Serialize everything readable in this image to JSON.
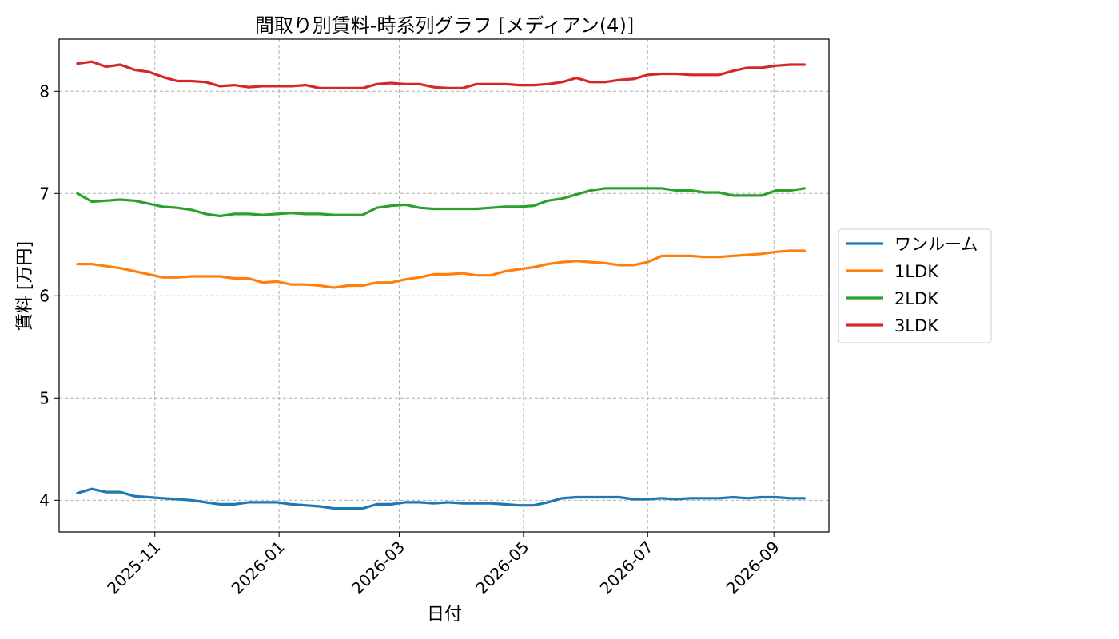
{
  "chart_data": {
    "type": "line",
    "title": "間取り別賃料-時系列グラフ [メディアン(4)]",
    "xlabel": "日付",
    "ylabel": "賃料 [万円]",
    "x_ticks": [
      "2025-11",
      "2026-01",
      "2026-03",
      "2026-05",
      "2026-07",
      "2026-09"
    ],
    "y_ticks": [
      "4",
      "5",
      "6",
      "7",
      "8"
    ],
    "xlim": [
      "2025-09-15",
      "2026-09-28"
    ],
    "ylim": [
      3.69,
      8.51
    ],
    "grid": true,
    "legend_position": "center-right (outside plot)",
    "x": [
      "2025-09-24",
      "2025-10-01",
      "2025-10-08",
      "2025-10-15",
      "2025-10-22",
      "2025-10-29",
      "2025-11-05",
      "2025-11-12",
      "2025-11-19",
      "2025-11-26",
      "2025-12-03",
      "2025-12-10",
      "2025-12-17",
      "2025-12-24",
      "2025-12-31",
      "2026-01-07",
      "2026-01-14",
      "2026-01-21",
      "2026-01-28",
      "2026-02-04",
      "2026-02-11",
      "2026-02-18",
      "2026-02-25",
      "2026-03-04",
      "2026-03-11",
      "2026-03-18",
      "2026-03-25",
      "2026-04-01",
      "2026-04-08",
      "2026-04-15",
      "2026-04-22",
      "2026-04-29",
      "2026-05-06",
      "2026-05-13",
      "2026-05-20",
      "2026-05-27",
      "2026-06-03",
      "2026-06-10",
      "2026-06-17",
      "2026-06-24",
      "2026-07-01",
      "2026-07-08",
      "2026-07-15",
      "2026-07-22",
      "2026-07-29",
      "2026-08-05",
      "2026-08-12",
      "2026-08-19",
      "2026-08-26",
      "2026-09-02",
      "2026-09-09",
      "2026-09-16"
    ],
    "series": [
      {
        "name": "ワンルーム",
        "color": "#1f77b4",
        "values": [
          4.07,
          4.11,
          4.08,
          4.08,
          4.04,
          4.03,
          4.02,
          4.01,
          4.0,
          3.98,
          3.96,
          3.96,
          3.98,
          3.98,
          3.98,
          3.96,
          3.95,
          3.94,
          3.92,
          3.92,
          3.92,
          3.96,
          3.96,
          3.98,
          3.98,
          3.97,
          3.98,
          3.97,
          3.97,
          3.97,
          3.96,
          3.95,
          3.95,
          3.98,
          4.02,
          4.03,
          4.03,
          4.03,
          4.03,
          4.01,
          4.01,
          4.02,
          4.01,
          4.02,
          4.02,
          4.02,
          4.03,
          4.02,
          4.03,
          4.03,
          4.02,
          4.02
        ]
      },
      {
        "name": "1LDK",
        "color": "#ff7f0e",
        "values": [
          6.31,
          6.31,
          6.29,
          6.27,
          6.24,
          6.21,
          6.18,
          6.18,
          6.19,
          6.19,
          6.19,
          6.17,
          6.17,
          6.13,
          6.14,
          6.11,
          6.11,
          6.1,
          6.08,
          6.1,
          6.1,
          6.13,
          6.13,
          6.16,
          6.18,
          6.21,
          6.21,
          6.22,
          6.2,
          6.2,
          6.24,
          6.26,
          6.28,
          6.31,
          6.33,
          6.34,
          6.33,
          6.32,
          6.3,
          6.3,
          6.33,
          6.39,
          6.39,
          6.39,
          6.38,
          6.38,
          6.39,
          6.4,
          6.41,
          6.43,
          6.44,
          6.44
        ]
      },
      {
        "name": "2LDK",
        "color": "#2ca02c",
        "values": [
          7.0,
          6.92,
          6.93,
          6.94,
          6.93,
          6.9,
          6.87,
          6.86,
          6.84,
          6.8,
          6.78,
          6.8,
          6.8,
          6.79,
          6.8,
          6.81,
          6.8,
          6.8,
          6.79,
          6.79,
          6.79,
          6.86,
          6.88,
          6.89,
          6.86,
          6.85,
          6.85,
          6.85,
          6.85,
          6.86,
          6.87,
          6.87,
          6.88,
          6.93,
          6.95,
          6.99,
          7.03,
          7.05,
          7.05,
          7.05,
          7.05,
          7.05,
          7.03,
          7.03,
          7.01,
          7.01,
          6.98,
          6.98,
          6.98,
          7.03,
          7.03,
          7.05
        ]
      },
      {
        "name": "3LDK",
        "color": "#d62728",
        "values": [
          8.27,
          8.29,
          8.24,
          8.26,
          8.21,
          8.19,
          8.14,
          8.1,
          8.1,
          8.09,
          8.05,
          8.06,
          8.04,
          8.05,
          8.05,
          8.05,
          8.06,
          8.03,
          8.03,
          8.03,
          8.03,
          8.07,
          8.08,
          8.07,
          8.07,
          8.04,
          8.03,
          8.03,
          8.07,
          8.07,
          8.07,
          8.06,
          8.06,
          8.07,
          8.09,
          8.13,
          8.09,
          8.09,
          8.11,
          8.12,
          8.16,
          8.17,
          8.17,
          8.16,
          8.16,
          8.16,
          8.2,
          8.23,
          8.23,
          8.25,
          8.26,
          8.26
        ]
      }
    ]
  }
}
